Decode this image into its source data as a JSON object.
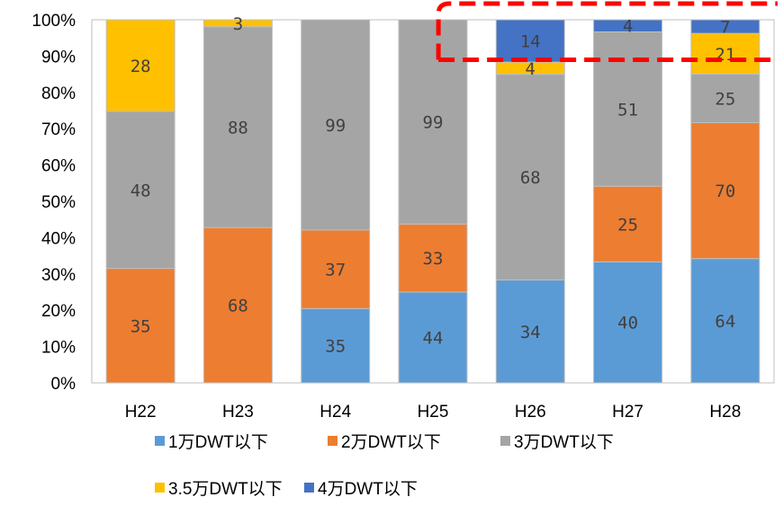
{
  "chart_data": {
    "type": "bar",
    "stacked": true,
    "normalized": true,
    "categories": [
      "H22",
      "H23",
      "H24",
      "H25",
      "H26",
      "H27",
      "H28"
    ],
    "series": [
      {
        "name": "1万DWT以下",
        "color": "#5B9BD5",
        "values": [
          0,
          0,
          35,
          44,
          34,
          40,
          64
        ]
      },
      {
        "name": "2万DWT以下",
        "color": "#ED7D31",
        "values": [
          35,
          68,
          37,
          33,
          0,
          25,
          70
        ]
      },
      {
        "name": "3万DWT以下",
        "color": "#A5A5A5",
        "values": [
          48,
          88,
          99,
          99,
          68,
          51,
          25
        ]
      },
      {
        "name": "3.5万DWT以下",
        "color": "#FFC000",
        "values": [
          28,
          3,
          0,
          0,
          4,
          0,
          21
        ]
      },
      {
        "name": "4万DWT以下",
        "color": "#4472C4",
        "values": [
          0,
          0,
          0,
          0,
          14,
          4,
          7
        ]
      }
    ],
    "y_ticks": [
      "0%",
      "10%",
      "20%",
      "30%",
      "40%",
      "50%",
      "60%",
      "70%",
      "80%",
      "90%",
      "100%"
    ],
    "ylim": [
      0,
      100
    ],
    "legend_position": "bottom",
    "annotation": {
      "type": "dashed-rectangle",
      "color": "#FF0000",
      "x_categories": [
        "H26",
        "H28"
      ],
      "y_range_percent": [
        89,
        100
      ]
    }
  }
}
